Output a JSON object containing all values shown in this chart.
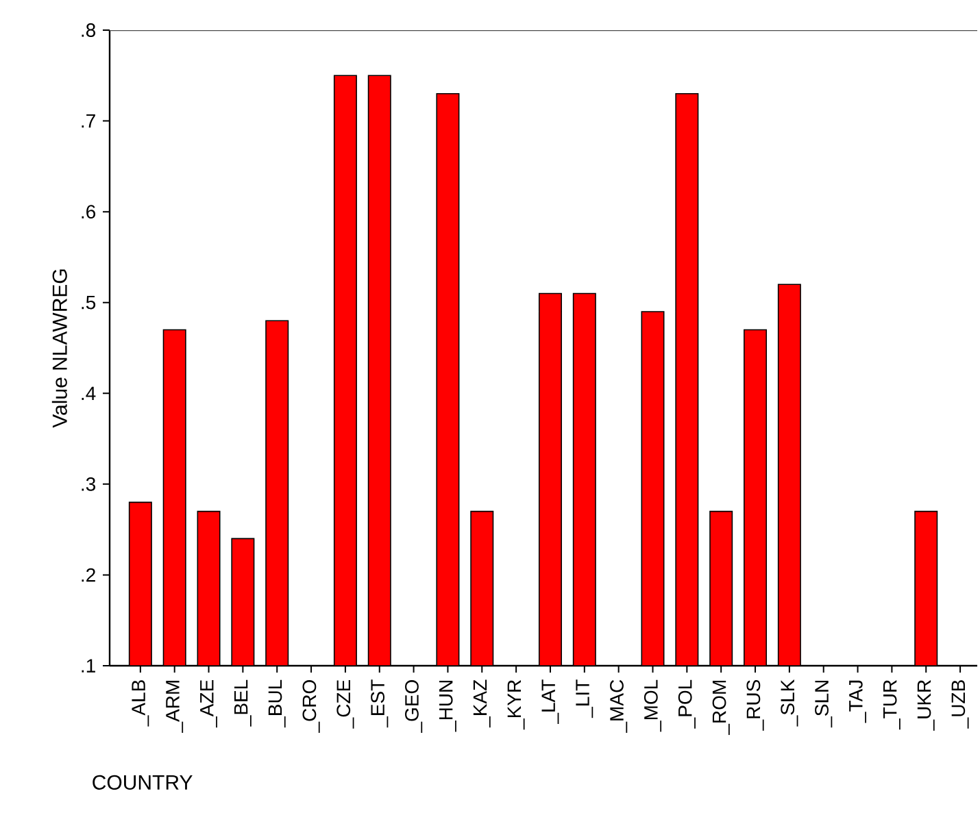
{
  "chart_data": {
    "type": "bar",
    "xlabel": "COUNTRY",
    "ylabel": "Value NLAWREG",
    "categories": [
      "_ALB",
      "_ARM",
      "_AZE",
      "_BEL",
      "_BUL",
      "_CRO",
      "_CZE",
      "_EST",
      "_GEO",
      "_HUN",
      "_KAZ",
      "_KYR",
      "_LAT",
      "_LIT",
      "_MAC",
      "_MOL",
      "_POL",
      "_ROM",
      "_RUS",
      "_SLK",
      "_SLN",
      "_TAJ",
      "_TUR",
      "_UKR",
      "_UZB"
    ],
    "values": [
      0.28,
      0.47,
      0.27,
      0.24,
      0.48,
      null,
      0.75,
      0.75,
      null,
      0.73,
      0.27,
      null,
      0.51,
      0.51,
      null,
      0.49,
      0.73,
      0.27,
      0.47,
      0.52,
      null,
      null,
      null,
      0.27,
      null
    ],
    "color": "#ff0000",
    "ylim": [
      0.1,
      0.8
    ],
    "yticks": [
      {
        "value": 0.1,
        "label": ".1"
      },
      {
        "value": 0.2,
        "label": ".2"
      },
      {
        "value": 0.3,
        "label": ".3"
      },
      {
        "value": 0.4,
        "label": ".4"
      },
      {
        "value": 0.5,
        "label": ".5"
      },
      {
        "value": 0.6,
        "label": ".6"
      },
      {
        "value": 0.7,
        "label": ".7"
      },
      {
        "value": 0.8,
        "label": ".8"
      }
    ]
  }
}
